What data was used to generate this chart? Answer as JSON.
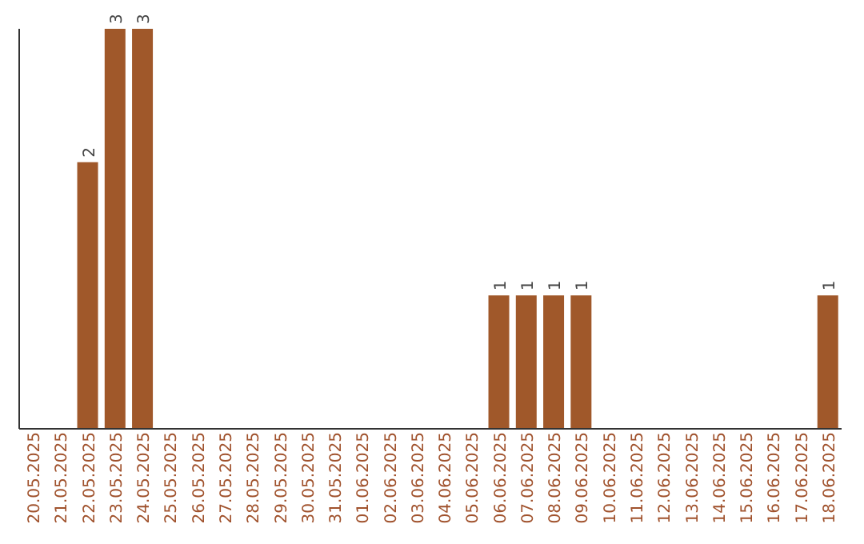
{
  "chart_data": {
    "type": "bar",
    "categories": [
      "20.05.2025",
      "21.05.2025",
      "22.05.2025",
      "23.05.2025",
      "24.05.2025",
      "25.05.2025",
      "26.05.2025",
      "27.05.2025",
      "28.05.2025",
      "29.05.2025",
      "30.05.2025",
      "31.05.2025",
      "01.06.2025",
      "02.06.2025",
      "03.06.2025",
      "04.06.2025",
      "05.06.2025",
      "06.06.2025",
      "07.06.2025",
      "08.06.2025",
      "09.06.2025",
      "10.06.2025",
      "11.06.2025",
      "12.06.2025",
      "13.06.2025",
      "14.06.2025",
      "15.06.2025",
      "16.06.2025",
      "17.06.2025",
      "18.06.2025"
    ],
    "values": [
      0,
      0,
      2,
      3,
      3,
      0,
      0,
      0,
      0,
      0,
      0,
      0,
      0,
      0,
      0,
      0,
      0,
      1,
      1,
      1,
      1,
      0,
      0,
      0,
      0,
      0,
      0,
      0,
      0,
      1
    ],
    "value_labels": [
      null,
      null,
      "2",
      "3",
      "3",
      null,
      null,
      null,
      null,
      null,
      null,
      null,
      null,
      null,
      null,
      null,
      null,
      "1",
      "1",
      "1",
      "1",
      null,
      null,
      null,
      null,
      null,
      null,
      null,
      null,
      "1"
    ],
    "color": "#a0582a",
    "tick_labels": "x"
  }
}
